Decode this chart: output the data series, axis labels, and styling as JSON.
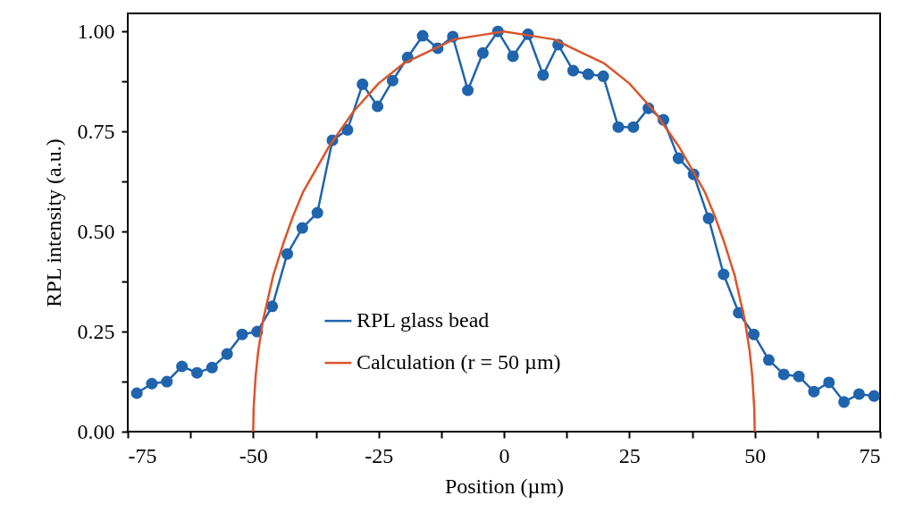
{
  "chart_data": {
    "type": "line",
    "xlabel": "Position (µm)",
    "ylabel": "RPL intensity (a.u.)",
    "xlim": [
      -75,
      75
    ],
    "ylim": [
      0,
      1.045
    ],
    "xticks": [
      -75,
      {
        "value": -62.5,
        "label": null
      },
      -50,
      {
        "value": -37.5,
        "label": null
      },
      -25,
      {
        "value": -12.5,
        "label": null
      },
      0,
      {
        "value": 12.5,
        "label": null
      },
      25,
      {
        "value": 37.5,
        "label": null
      },
      50,
      {
        "value": 62.5,
        "label": null
      },
      75
    ],
    "yticks": [
      {
        "value": 0,
        "label": "0.00"
      },
      {
        "value": 0.125,
        "label": null
      },
      {
        "value": 0.25,
        "label": "0.25"
      },
      {
        "value": 0.375,
        "label": null
      },
      {
        "value": 0.5,
        "label": "0.50"
      },
      {
        "value": 0.625,
        "label": null
      },
      {
        "value": 0.75,
        "label": "0.75"
      },
      {
        "value": 0.875,
        "label": null
      },
      {
        "value": 1,
        "label": "1.00"
      }
    ],
    "grid": false,
    "legend": "bottom",
    "series": [
      {
        "name": "RPL glass bead",
        "color": "#1f64ad",
        "marker": "circle",
        "x": [
          -73.2,
          -70.2,
          -67.2,
          -64.2,
          -61.2,
          -58.2,
          -55.2,
          -52.2,
          -49.2,
          -46.2,
          -43.2,
          -40.2,
          -37.2,
          -34.2,
          -31.2,
          -28.2,
          -25.2,
          -22.2,
          -19.2,
          -16.2,
          -13.2,
          -10.2,
          -7.2,
          -4.2,
          -1.2,
          1.8,
          4.8,
          7.8,
          10.8,
          13.8,
          16.8,
          19.8,
          22.8,
          25.8,
          28.8,
          31.8,
          34.8,
          37.8,
          40.8,
          43.8,
          46.8,
          49.8,
          52.8,
          55.8,
          58.8,
          61.8,
          64.8,
          67.8,
          70.8,
          73.8
        ],
        "values": [
          0.096,
          0.12,
          0.125,
          0.163,
          0.147,
          0.16,
          0.194,
          0.243,
          0.25,
          0.313,
          0.444,
          0.509,
          0.547,
          0.728,
          0.754,
          0.868,
          0.813,
          0.877,
          0.935,
          0.989,
          0.958,
          0.987,
          0.853,
          0.946,
          1.0,
          0.938,
          0.993,
          0.891,
          0.967,
          0.902,
          0.893,
          0.888,
          0.761,
          0.761,
          0.808,
          0.779,
          0.683,
          0.643,
          0.533,
          0.393,
          0.297,
          0.243,
          0.179,
          0.143,
          0.138,
          0.1,
          0.123,
          0.074,
          0.094,
          0.089
        ]
      },
      {
        "name": "Calculation  (r = 50 µm)",
        "color": "#d9552b",
        "marker": "none",
        "x": [
          -50,
          -49.9,
          -49.5,
          -49,
          -48,
          -46,
          -44,
          -42,
          -40,
          -35,
          -30,
          -25,
          -20,
          -15,
          -10,
          -5,
          0,
          5,
          10,
          15,
          20,
          25,
          30,
          35,
          40,
          42,
          44,
          46,
          48,
          49,
          49.5,
          49.9,
          50
        ],
        "values": [
          0,
          0.06,
          0.14,
          0.2,
          0.28,
          0.39,
          0.47,
          0.54,
          0.6,
          0.71,
          0.8,
          0.87,
          0.92,
          0.95,
          0.98,
          0.99,
          1,
          0.99,
          0.98,
          0.95,
          0.92,
          0.87,
          0.8,
          0.71,
          0.6,
          0.54,
          0.47,
          0.39,
          0.28,
          0.2,
          0.14,
          0.06,
          0
        ]
      }
    ]
  }
}
